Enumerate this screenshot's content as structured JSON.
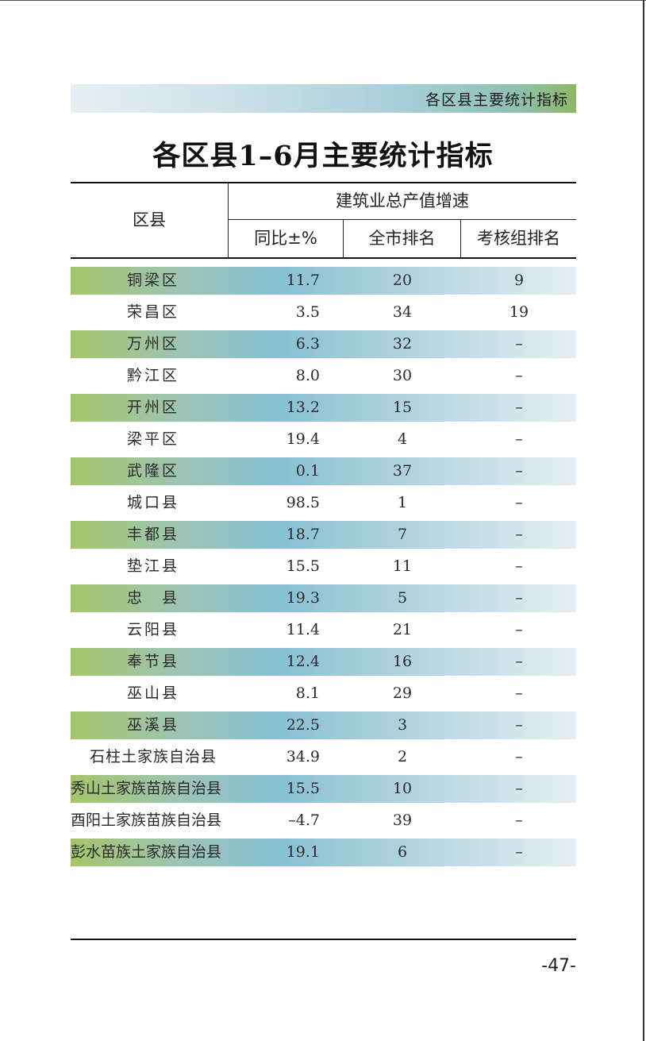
{
  "banner": {
    "text": "各区县主要统计指标"
  },
  "title": "各区县1–6月主要统计指标",
  "table": {
    "header": {
      "district": "区县",
      "group": "建筑业总产值增速",
      "yoy": "同比±%",
      "city_rank": "全市排名",
      "group_rank": "考核组排名"
    },
    "rows": [
      {
        "name": "铜梁区",
        "yoy": "11.7",
        "city_rank": "20",
        "group_rank": "9"
      },
      {
        "name": "荣昌区",
        "yoy": "3.5",
        "city_rank": "34",
        "group_rank": "19"
      },
      {
        "name": "万州区",
        "yoy": "6.3",
        "city_rank": "32",
        "group_rank": "–"
      },
      {
        "name": "黔江区",
        "yoy": "8.0",
        "city_rank": "30",
        "group_rank": "–"
      },
      {
        "name": "开州区",
        "yoy": "13.2",
        "city_rank": "15",
        "group_rank": "–"
      },
      {
        "name": "梁平区",
        "yoy": "19.4",
        "city_rank": "4",
        "group_rank": "–"
      },
      {
        "name": "武隆区",
        "yoy": "0.1",
        "city_rank": "37",
        "group_rank": "–"
      },
      {
        "name": "城口县",
        "yoy": "98.5",
        "city_rank": "1",
        "group_rank": "–"
      },
      {
        "name": "丰都县",
        "yoy": "18.7",
        "city_rank": "7",
        "group_rank": "–"
      },
      {
        "name": "垫江县",
        "yoy": "15.5",
        "city_rank": "11",
        "group_rank": "–"
      },
      {
        "name": "忠　县",
        "yoy": "19.3",
        "city_rank": "5",
        "group_rank": "–"
      },
      {
        "name": "云阳县",
        "yoy": "11.4",
        "city_rank": "21",
        "group_rank": "–"
      },
      {
        "name": "奉节县",
        "yoy": "12.4",
        "city_rank": "16",
        "group_rank": "–"
      },
      {
        "name": "巫山县",
        "yoy": "8.1",
        "city_rank": "29",
        "group_rank": "–"
      },
      {
        "name": "巫溪县",
        "yoy": "22.5",
        "city_rank": "3",
        "group_rank": "–"
      },
      {
        "name": "石柱土家族自治县",
        "yoy": "34.9",
        "city_rank": "2",
        "group_rank": "–"
      },
      {
        "name": "秀山土家族苗族自治县",
        "yoy": "15.5",
        "city_rank": "10",
        "group_rank": "–"
      },
      {
        "name": "酉阳土家族苗族自治县",
        "yoy": "–4.7",
        "city_rank": "39",
        "group_rank": "–"
      },
      {
        "name": "彭水苗族土家族自治县",
        "yoy": "19.1",
        "city_rank": "6",
        "group_rank": "–"
      }
    ]
  },
  "page_number": "-47-"
}
